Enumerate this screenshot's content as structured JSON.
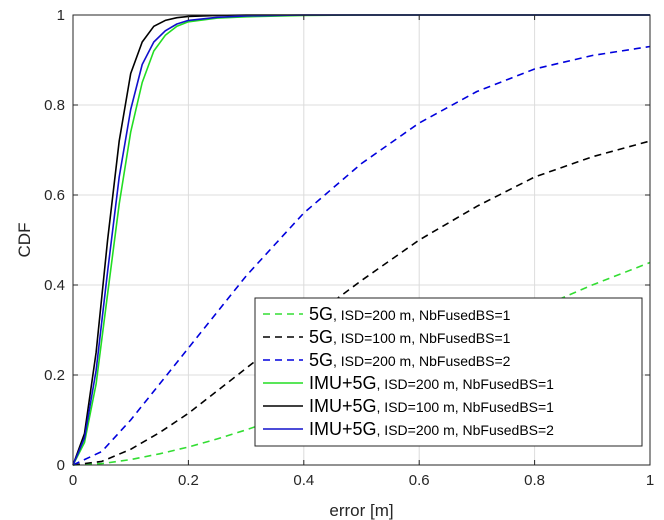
{
  "chart_data": {
    "type": "line",
    "xlabel": "error [m]",
    "ylabel": "CDF",
    "xlim": [
      0,
      1
    ],
    "ylim": [
      0,
      1
    ],
    "xticks": [
      "0",
      "0.2",
      "0.4",
      "0.6",
      "0.8",
      "1"
    ],
    "yticks": [
      "0",
      "0.2",
      "0.4",
      "0.6",
      "0.8",
      "1"
    ],
    "grid": true,
    "legend_position": "bottom-right",
    "series": [
      {
        "name_prefix": "5G",
        "name_rest": ", ISD=200 m, NbFusedBS=1",
        "color": "#33dd33",
        "dash": "dashed",
        "x": [
          0,
          0.05,
          0.1,
          0.15,
          0.2,
          0.25,
          0.3,
          0.35,
          0.4,
          0.5,
          0.6,
          0.7,
          0.8,
          0.9,
          1.0
        ],
        "y": [
          0,
          0.003,
          0.012,
          0.025,
          0.04,
          0.058,
          0.078,
          0.1,
          0.123,
          0.175,
          0.23,
          0.29,
          0.345,
          0.4,
          0.45
        ]
      },
      {
        "name_prefix": "5G",
        "name_rest": ", ISD=100 m, NbFusedBS=1",
        "color": "#000000",
        "dash": "dashed",
        "x": [
          0,
          0.05,
          0.1,
          0.15,
          0.2,
          0.25,
          0.3,
          0.35,
          0.4,
          0.5,
          0.6,
          0.7,
          0.8,
          0.9,
          1.0
        ],
        "y": [
          0,
          0.008,
          0.035,
          0.072,
          0.115,
          0.165,
          0.215,
          0.265,
          0.315,
          0.41,
          0.5,
          0.575,
          0.64,
          0.685,
          0.72
        ]
      },
      {
        "name_prefix": "5G",
        "name_rest": ", ISD=200 m, NbFusedBS=2",
        "color": "#0000dd",
        "dash": "dashed",
        "x": [
          0,
          0.05,
          0.1,
          0.15,
          0.2,
          0.25,
          0.3,
          0.35,
          0.4,
          0.5,
          0.6,
          0.7,
          0.8,
          0.9,
          1.0
        ],
        "y": [
          0,
          0.03,
          0.1,
          0.18,
          0.26,
          0.34,
          0.42,
          0.49,
          0.56,
          0.67,
          0.76,
          0.83,
          0.88,
          0.91,
          0.93
        ]
      },
      {
        "name_prefix": "IMU+5G",
        "name_rest": ", ISD=200 m, NbFusedBS=1",
        "color": "#22dd22",
        "dash": "solid",
        "x": [
          0,
          0.02,
          0.04,
          0.06,
          0.08,
          0.1,
          0.12,
          0.14,
          0.16,
          0.18,
          0.2,
          0.25,
          0.3,
          0.4,
          0.5,
          1.0
        ],
        "y": [
          0,
          0.05,
          0.18,
          0.38,
          0.58,
          0.74,
          0.85,
          0.92,
          0.955,
          0.975,
          0.985,
          0.993,
          0.996,
          0.999,
          1.0,
          1.0
        ]
      },
      {
        "name_prefix": "IMU+5G",
        "name_rest": ", ISD=100 m, NbFusedBS=1",
        "color": "#000000",
        "dash": "solid",
        "x": [
          0,
          0.02,
          0.04,
          0.06,
          0.08,
          0.1,
          0.12,
          0.14,
          0.16,
          0.18,
          0.2,
          0.25,
          0.3,
          0.4,
          1.0
        ],
        "y": [
          0,
          0.07,
          0.25,
          0.5,
          0.72,
          0.87,
          0.94,
          0.975,
          0.988,
          0.994,
          0.997,
          0.999,
          1.0,
          1.0,
          1.0
        ]
      },
      {
        "name_prefix": "IMU+5G",
        "name_rest": ", ISD=200 m, NbFusedBS=2",
        "color": "#1111cc",
        "dash": "solid",
        "x": [
          0,
          0.02,
          0.04,
          0.06,
          0.08,
          0.1,
          0.12,
          0.14,
          0.16,
          0.18,
          0.2,
          0.25,
          0.3,
          0.4,
          1.0
        ],
        "y": [
          0,
          0.06,
          0.21,
          0.43,
          0.64,
          0.79,
          0.89,
          0.94,
          0.965,
          0.98,
          0.988,
          0.995,
          0.998,
          1.0,
          1.0
        ]
      }
    ]
  }
}
